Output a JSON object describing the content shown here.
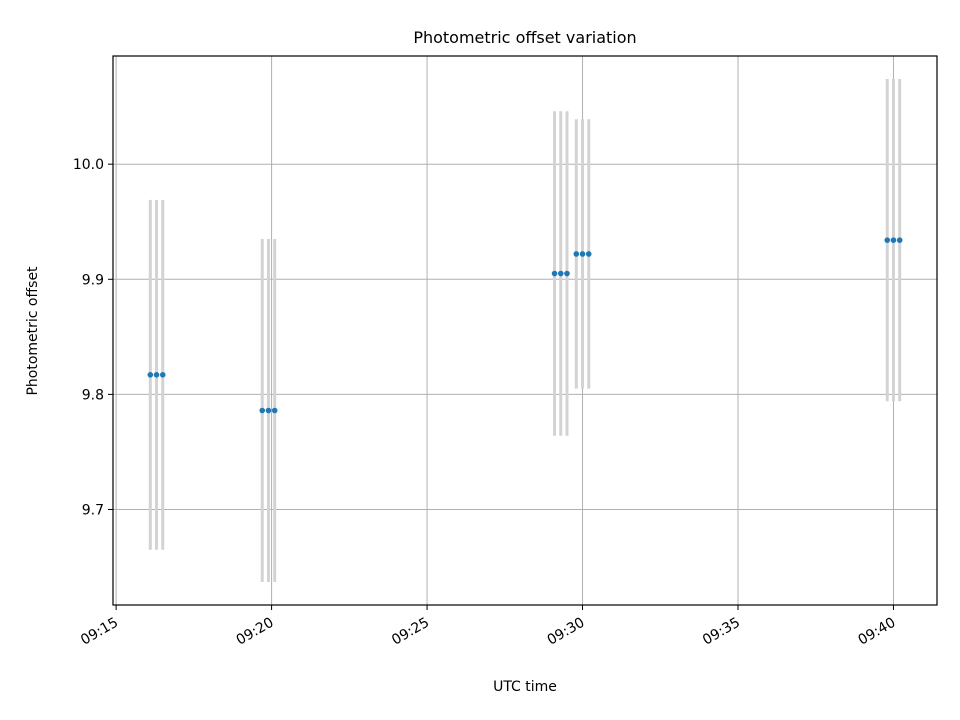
{
  "chart_data": {
    "type": "scatter",
    "title": "Photometric offset variation",
    "xlabel": "UTC time",
    "ylabel": "Photometric offset",
    "x_ticks": [
      "09:15",
      "09:20",
      "09:25",
      "09:30",
      "09:35",
      "09:40"
    ],
    "y_ticks": [
      "9.7",
      "9.8",
      "9.9",
      "10.0"
    ],
    "xlim": [
      "09:14:54",
      "09:41:24"
    ],
    "ylim": [
      9.617,
      10.094
    ],
    "grid": true,
    "colors": {
      "point": "#1f77b4",
      "errorbar": "#d3d3d3"
    },
    "points": [
      {
        "x": "09:16:06",
        "y": 9.817,
        "yerr": 0.152
      },
      {
        "x": "09:16:18",
        "y": 9.817,
        "yerr": 0.152
      },
      {
        "x": "09:16:30",
        "y": 9.817,
        "yerr": 0.152
      },
      {
        "x": "09:19:42",
        "y": 9.786,
        "yerr": 0.149
      },
      {
        "x": "09:19:54",
        "y": 9.786,
        "yerr": 0.149
      },
      {
        "x": "09:20:06",
        "y": 9.786,
        "yerr": 0.149
      },
      {
        "x": "09:29:06",
        "y": 9.905,
        "yerr": 0.141
      },
      {
        "x": "09:29:18",
        "y": 9.905,
        "yerr": 0.141
      },
      {
        "x": "09:29:30",
        "y": 9.905,
        "yerr": 0.141
      },
      {
        "x": "09:29:48",
        "y": 9.922,
        "yerr": 0.117
      },
      {
        "x": "09:30:00",
        "y": 9.922,
        "yerr": 0.117
      },
      {
        "x": "09:30:12",
        "y": 9.922,
        "yerr": 0.117
      },
      {
        "x": "09:39:48",
        "y": 9.934,
        "yerr": 0.14
      },
      {
        "x": "09:40:00",
        "y": 9.934,
        "yerr": 0.14
      },
      {
        "x": "09:40:12",
        "y": 9.934,
        "yerr": 0.14
      }
    ]
  }
}
